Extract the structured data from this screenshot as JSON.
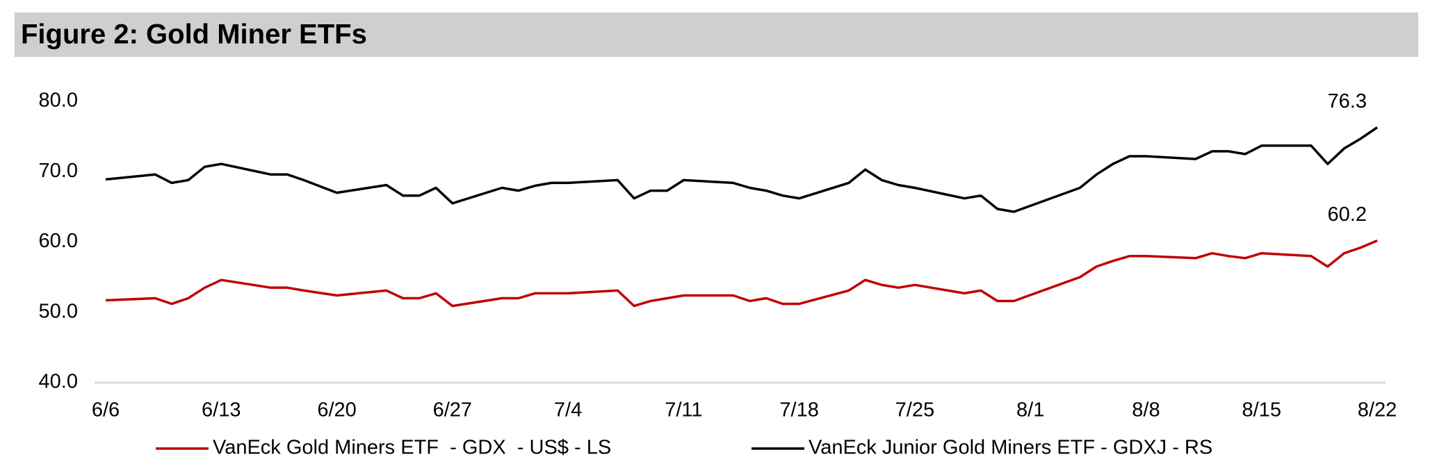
{
  "chart_data": {
    "type": "line",
    "title": "Figure 2: Gold Miner ETFs",
    "x": [
      0,
      3,
      4,
      5,
      6,
      7,
      10,
      11,
      12,
      14,
      17,
      18,
      19,
      20,
      21,
      24,
      25,
      26,
      27,
      28,
      31,
      32,
      33,
      34,
      35,
      38,
      39,
      40,
      41,
      42,
      45,
      46,
      47,
      48,
      49,
      52,
      53,
      54,
      55,
      59,
      60,
      61,
      62,
      63,
      66,
      67,
      68,
      69,
      70,
      73,
      74,
      75,
      76,
      77
    ],
    "xlim": [
      0,
      77
    ],
    "xticks": [
      {
        "value": 0,
        "label": "6/6"
      },
      {
        "value": 7,
        "label": "6/13"
      },
      {
        "value": 14,
        "label": "6/20"
      },
      {
        "value": 21,
        "label": "6/27"
      },
      {
        "value": 28,
        "label": "7/4"
      },
      {
        "value": 35,
        "label": "7/11"
      },
      {
        "value": 42,
        "label": "7/18"
      },
      {
        "value": 49,
        "label": "7/25"
      },
      {
        "value": 56,
        "label": "8/1"
      },
      {
        "value": 63,
        "label": "8/8"
      },
      {
        "value": 70,
        "label": "8/15"
      },
      {
        "value": 77,
        "label": "8/22"
      }
    ],
    "ylim": [
      40,
      80
    ],
    "yticks": [
      {
        "value": 40,
        "label": "40.0"
      },
      {
        "value": 50,
        "label": "50.0"
      },
      {
        "value": 60,
        "label": "60.0"
      },
      {
        "value": 70,
        "label": "70.0"
      },
      {
        "value": 80,
        "label": "80.0"
      }
    ],
    "grid": false,
    "legend": "bottom",
    "series": [
      {
        "name": "VanEck Gold Miners ETF  - GDX  - US$ - LS",
        "color": "#c00000",
        "values": [
          51.7,
          52.0,
          51.2,
          52.0,
          53.5,
          54.6,
          53.5,
          53.5,
          53.1,
          52.4,
          53.1,
          52.0,
          52.0,
          52.7,
          50.9,
          52.0,
          52.0,
          52.7,
          52.7,
          52.7,
          53.1,
          50.9,
          51.6,
          52.0,
          52.4,
          52.4,
          51.6,
          52.0,
          51.2,
          51.2,
          53.1,
          54.6,
          53.9,
          53.5,
          53.9,
          52.7,
          53.1,
          51.6,
          51.6,
          55.0,
          56.5,
          57.3,
          58.0,
          58.0,
          57.7,
          58.4,
          58.0,
          57.7,
          58.4,
          58.0,
          56.5,
          58.4,
          59.2,
          60.2
        ]
      },
      {
        "name": "VanEck Junior Gold Miners ETF - GDXJ - RS",
        "color": "#000000",
        "values": [
          68.9,
          69.6,
          68.4,
          68.8,
          70.7,
          71.1,
          69.6,
          69.6,
          68.8,
          67.0,
          68.1,
          66.6,
          66.6,
          67.7,
          65.5,
          67.7,
          67.3,
          68.0,
          68.4,
          68.4,
          68.8,
          66.2,
          67.3,
          67.3,
          68.8,
          68.4,
          67.7,
          67.3,
          66.6,
          66.2,
          68.4,
          70.3,
          68.8,
          68.1,
          67.7,
          66.2,
          66.6,
          64.7,
          64.3,
          67.7,
          69.6,
          71.1,
          72.2,
          72.2,
          71.8,
          72.9,
          72.9,
          72.5,
          73.7,
          73.7,
          71.1,
          73.3,
          74.7,
          76.3
        ]
      }
    ]
  }
}
